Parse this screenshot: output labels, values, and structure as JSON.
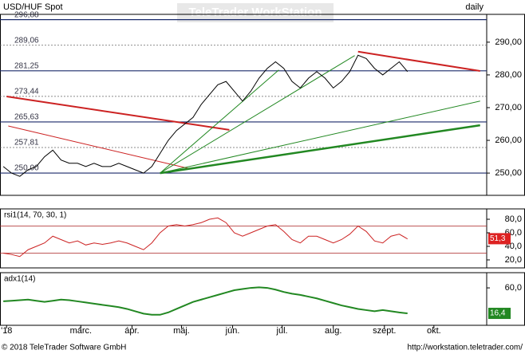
{
  "header": {
    "symbol": "USD/HUF Spot",
    "period": "daily",
    "watermark": "TeleTrader WorkStation"
  },
  "footer": {
    "copyright": "© 2018 TeleTrader Software GmbH",
    "url": "http://workstation.teletrader.com/"
  },
  "chart_data": [
    {
      "type": "line",
      "color": "#000000",
      "x": [
        12,
        17,
        22,
        27,
        32,
        37,
        42,
        47,
        52,
        57,
        62,
        67,
        72,
        77,
        82,
        87,
        92,
        97,
        102,
        107,
        112,
        117,
        122,
        127,
        132,
        137,
        142,
        147,
        152,
        157,
        162,
        167,
        172,
        177,
        182,
        187,
        192,
        197,
        202,
        207,
        212,
        217,
        222,
        227,
        232,
        237,
        242,
        247,
        252,
        257
      ],
      "values": [
        252,
        250,
        249,
        251,
        252,
        255,
        257,
        254,
        253,
        253,
        252,
        253,
        252,
        252,
        253,
        252,
        251,
        250,
        252,
        256,
        260,
        263,
        265,
        267,
        271,
        274,
        277,
        278,
        275,
        272,
        275,
        279,
        282,
        284,
        282,
        278,
        276,
        279,
        281,
        279,
        276,
        278,
        281,
        286,
        285,
        282,
        280,
        282,
        284,
        281
      ],
      "xlim": [
        10,
        305
      ],
      "ylim": [
        243.2,
        298.5
      ],
      "yticks": [
        {
          "value": 250,
          "label": "250,00"
        },
        {
          "value": 260,
          "label": "260,00"
        },
        {
          "value": 270,
          "label": "270,00"
        },
        {
          "value": 280,
          "label": "280,00"
        },
        {
          "value": 290,
          "label": "290,00"
        }
      ],
      "levels": [
        {
          "value": 296.88,
          "label": "296,88",
          "style": "solid"
        },
        {
          "value": 289.06,
          "label": "289,06",
          "style": "dotted"
        },
        {
          "value": 281.25,
          "label": "281,25",
          "style": "solid"
        },
        {
          "value": 273.44,
          "label": "273,44",
          "style": "dotted"
        },
        {
          "value": 265.63,
          "label": "265,63",
          "style": "solid"
        },
        {
          "value": 257.81,
          "label": "257,81",
          "style": "dotted"
        },
        {
          "value": 250,
          "label": "250,00",
          "style": "solid"
        }
      ],
      "trendlines": [
        {
          "color": "#cc2222",
          "width": 2,
          "x": [
            14,
            149
          ],
          "y": [
            273.4,
            263.2
          ]
        },
        {
          "color": "#cc2222",
          "width": 2,
          "x": [
            227,
            301
          ],
          "y": [
            287.1,
            281.2
          ]
        },
        {
          "color": "#cc2222",
          "width": 1,
          "x": [
            15,
            126
          ],
          "y": [
            264.4,
            251.2
          ]
        },
        {
          "color": "#228822",
          "width": 2.5,
          "x": [
            107,
            301
          ],
          "y": [
            250,
            264.6
          ]
        },
        {
          "color": "#228822",
          "width": 1,
          "x": [
            107,
            301
          ],
          "y": [
            250,
            272
          ]
        },
        {
          "color": "#228822",
          "width": 1,
          "x": [
            107,
            225
          ],
          "y": [
            250,
            285.9
          ]
        },
        {
          "color": "#228822",
          "width": 1,
          "x": [
            107,
            179
          ],
          "y": [
            250,
            281.5
          ]
        }
      ]
    },
    {
      "type": "line",
      "title": "rsi1(14, 70, 30, 1)",
      "color": "#cc2222",
      "x": [
        12,
        17,
        22,
        27,
        32,
        37,
        42,
        47,
        52,
        57,
        62,
        67,
        72,
        77,
        82,
        87,
        92,
        97,
        102,
        107,
        112,
        117,
        122,
        127,
        132,
        137,
        142,
        147,
        152,
        157,
        162,
        167,
        172,
        177,
        182,
        187,
        192,
        197,
        202,
        207,
        212,
        217,
        222,
        227,
        232,
        237,
        242,
        247,
        252,
        257
      ],
      "values": [
        30,
        28,
        25,
        35,
        40,
        45,
        55,
        50,
        45,
        48,
        42,
        45,
        43,
        45,
        48,
        45,
        40,
        35,
        45,
        60,
        70,
        72,
        70,
        72,
        75,
        80,
        82,
        75,
        60,
        55,
        60,
        65,
        70,
        72,
        62,
        50,
        45,
        55,
        55,
        50,
        45,
        50,
        58,
        70,
        62,
        48,
        45,
        55,
        58,
        51
      ],
      "xlim": [
        10,
        305
      ],
      "ylim": [
        8.2,
        95.3
      ],
      "yticks": [
        {
          "value": 20,
          "label": "20,0"
        },
        {
          "value": 40,
          "label": "40,0"
        },
        {
          "value": 60,
          "label": "60,0"
        },
        {
          "value": 80,
          "label": "80,0"
        }
      ],
      "levels": [
        {
          "value": 70
        },
        {
          "value": 30
        }
      ],
      "last_label": {
        "value": 51.3,
        "label": "51,3",
        "color": "#dd2222"
      }
    },
    {
      "type": "line",
      "title": "adx1(14)",
      "color": "#228822",
      "x": [
        12,
        17,
        22,
        27,
        32,
        37,
        42,
        47,
        52,
        57,
        62,
        67,
        72,
        77,
        82,
        87,
        92,
        97,
        102,
        107,
        112,
        117,
        122,
        127,
        132,
        137,
        142,
        147,
        152,
        157,
        162,
        167,
        172,
        177,
        182,
        187,
        192,
        197,
        202,
        207,
        212,
        217,
        222,
        227,
        232,
        237,
        242,
        247,
        252,
        257
      ],
      "values": [
        37,
        38,
        39,
        40,
        38,
        36,
        38,
        40,
        39,
        37,
        35,
        33,
        31,
        29,
        27,
        24,
        20,
        16,
        14,
        14,
        18,
        24,
        30,
        36,
        40,
        44,
        48,
        52,
        56,
        58,
        60,
        61,
        60,
        57,
        53,
        50,
        48,
        45,
        42,
        38,
        34,
        30,
        27,
        24,
        22,
        20,
        22,
        20,
        18,
        16.4
      ],
      "xlim": [
        10,
        305
      ],
      "ylim": [
        -4,
        86
      ],
      "yticks": [
        {
          "value": 60,
          "label": "60,0"
        }
      ],
      "last_label": {
        "value": 16.4,
        "label": "16,4",
        "color": "#228822"
      },
      "xticks": [
        {
          "value": 14,
          "label": "'18"
        },
        {
          "value": 59,
          "label": "márc."
        },
        {
          "value": 90,
          "label": "ápr."
        },
        {
          "value": 120,
          "label": "máj."
        },
        {
          "value": 151,
          "label": "jún."
        },
        {
          "value": 181,
          "label": "júl."
        },
        {
          "value": 212,
          "label": "aug."
        },
        {
          "value": 243,
          "label": "szept."
        },
        {
          "value": 273,
          "label": "okt."
        }
      ]
    }
  ]
}
